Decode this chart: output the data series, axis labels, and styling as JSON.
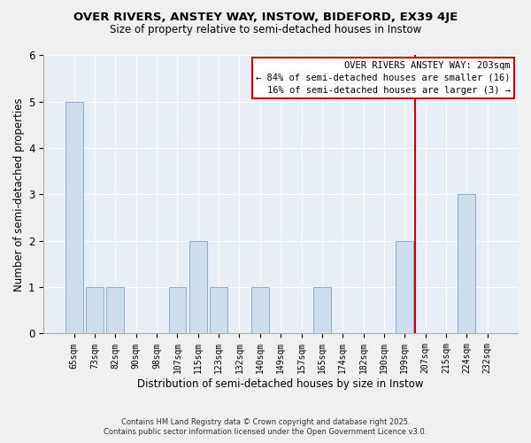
{
  "title_line1": "OVER RIVERS, ANSTEY WAY, INSTOW, BIDEFORD, EX39 4JE",
  "title_line2": "Size of property relative to semi-detached houses in Instow",
  "xlabel": "Distribution of semi-detached houses by size in Instow",
  "ylabel": "Number of semi-detached properties",
  "categories": [
    "65sqm",
    "73sqm",
    "82sqm",
    "90sqm",
    "98sqm",
    "107sqm",
    "115sqm",
    "123sqm",
    "132sqm",
    "140sqm",
    "149sqm",
    "157sqm",
    "165sqm",
    "174sqm",
    "182sqm",
    "190sqm",
    "199sqm",
    "207sqm",
    "215sqm",
    "224sqm",
    "232sqm"
  ],
  "values": [
    5,
    1,
    1,
    0,
    0,
    1,
    2,
    1,
    0,
    1,
    0,
    0,
    1,
    0,
    0,
    0,
    2,
    0,
    0,
    3,
    0
  ],
  "bar_color": "#ccdded",
  "bar_edge_color": "#8ab0cc",
  "vline_color": "#cc0000",
  "ylim": [
    0,
    6
  ],
  "yticks": [
    0,
    1,
    2,
    3,
    4,
    5,
    6
  ],
  "annotation_title": "OVER RIVERS ANSTEY WAY: 203sqm",
  "annotation_line2": "← 84% of semi-detached houses are smaller (16)",
  "annotation_line3": "16% of semi-detached houses are larger (3) →",
  "annotation_box_color": "#ffffff",
  "annotation_box_edge": "#cc0000",
  "footer_line1": "Contains HM Land Registry data © Crown copyright and database right 2025.",
  "footer_line2": "Contains public sector information licensed under the Open Government Licence v3.0.",
  "background_color": "#f0f0f0",
  "plot_bg_color": "#e8eef5"
}
